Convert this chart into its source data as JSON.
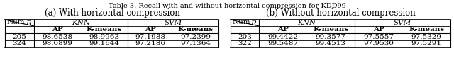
{
  "title": "Table 3. Recall with and without horizontal compression for KDD99",
  "subtitle_a": "(a) With horizontal compression",
  "subtitle_b": "(b) Without horizontal compression",
  "table_a": {
    "rows": [
      [
        "205",
        "98.6538",
        "98.9963",
        "97.1988",
        "97.2399"
      ],
      [
        "324",
        "98.0899",
        "99.1644",
        "97.2186",
        "97.1364"
      ]
    ]
  },
  "table_b": {
    "rows": [
      [
        "203",
        "99.4422",
        "99.3577",
        "97.5557",
        "97.5329"
      ],
      [
        "322",
        "99.5487",
        "99.4513",
        "97.9530",
        "97.5291"
      ]
    ]
  },
  "background_color": "#ffffff",
  "title_fontsize": 7.0,
  "subtitle_fontsize": 8.5,
  "header_fontsize": 7.5,
  "data_fontsize": 7.5
}
